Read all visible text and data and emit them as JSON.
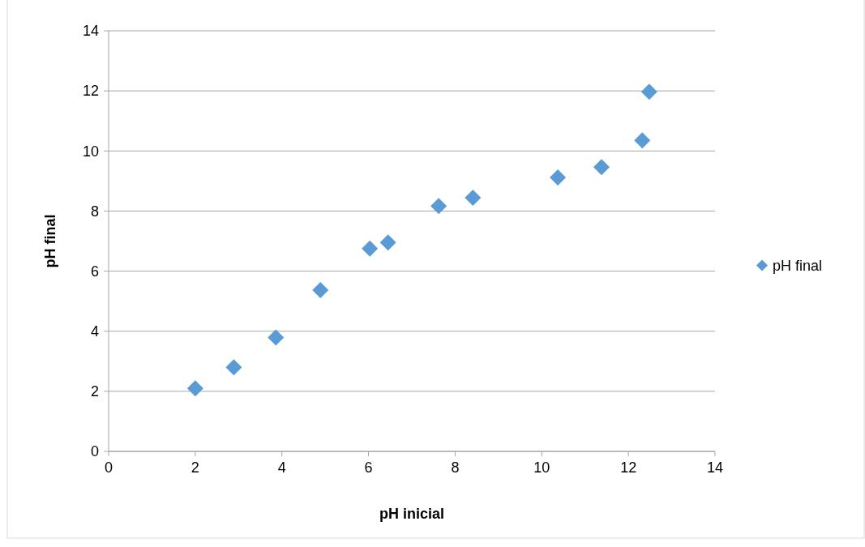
{
  "chart_data": {
    "type": "scatter",
    "xlabel": "pH inicial",
    "ylabel": "pH final",
    "x": [
      2.0,
      2.89,
      3.86,
      4.89,
      6.03,
      6.45,
      7.62,
      8.41,
      10.37,
      11.38,
      12.32,
      12.48
    ],
    "series": [
      {
        "name": "pH final",
        "color": "#5b9bd5",
        "values": [
          2.1,
          2.8,
          3.79,
          5.37,
          6.75,
          6.95,
          8.17,
          8.44,
          9.12,
          9.46,
          10.35,
          11.97
        ]
      }
    ],
    "xlim": [
      0,
      14
    ],
    "xticks": [
      0,
      2,
      4,
      6,
      8,
      10,
      12,
      14
    ],
    "ylim": [
      0,
      14
    ],
    "yticks": [
      0,
      2,
      4,
      6,
      8,
      10,
      12,
      14
    ],
    "grid": "y",
    "legend": "right",
    "marker": "diamond"
  }
}
